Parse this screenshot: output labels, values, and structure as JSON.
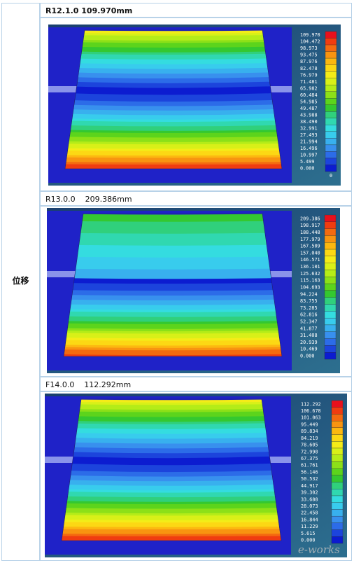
{
  "row_label": "位移",
  "panels": [
    {
      "header": "R12.1.0 109.970mm",
      "header_bold": true,
      "max_value": "0",
      "legend_values": [
        "109.970",
        "104.472",
        "98.973",
        "93.475",
        "87.976",
        "82.478",
        "76.979",
        "71.481",
        "65.982",
        "60.484",
        "54.985",
        "49.487",
        "43.988",
        "38.490",
        "32.991",
        "27.493",
        "21.994",
        "16.496",
        "10.997",
        "5.499",
        "0.000"
      ],
      "min_marker": "0"
    },
    {
      "header": "R13.0.0    209.386mm",
      "header_bold": false,
      "max_value": "",
      "legend_values": [
        "209.386",
        "198.917",
        "188.448",
        "177.979",
        "167.509",
        "157.040",
        "146.571",
        "136.101",
        "125.632",
        "115.163",
        "104.693",
        "94.224",
        "83.755",
        "73.285",
        "62.816",
        "52.347",
        "41.877",
        "31.408",
        "20.939",
        "10.469",
        "0.000"
      ],
      "min_marker": ""
    },
    {
      "header": "F14.0.0    112.292mm",
      "header_bold": false,
      "max_value": "",
      "legend_values": [
        "112.292",
        "106.678",
        "101.063",
        "95.449",
        "89.834",
        "84.219",
        "78.605",
        "72.990",
        "67.375",
        "61.761",
        "56.146",
        "50.532",
        "44.917",
        "39.302",
        "33.688",
        "28.073",
        "22.458",
        "16.844",
        "11.229",
        "5.615",
        "0.000"
      ],
      "min_marker": ""
    }
  ],
  "watermark": "e-works",
  "colors": {
    "scale": [
      "#e8101c",
      "#f03c10",
      "#f46a10",
      "#f89410",
      "#fcb810",
      "#fcd814",
      "#f4ec18",
      "#d8f018",
      "#b4ec18",
      "#8ce018",
      "#5cd41c",
      "#34c830",
      "#30d07c",
      "#30d8b0",
      "#34dce0",
      "#38cced",
      "#38b0ee",
      "#3890ee",
      "#2c6ce8",
      "#1c44dc",
      "#0c1cd0"
    ]
  }
}
